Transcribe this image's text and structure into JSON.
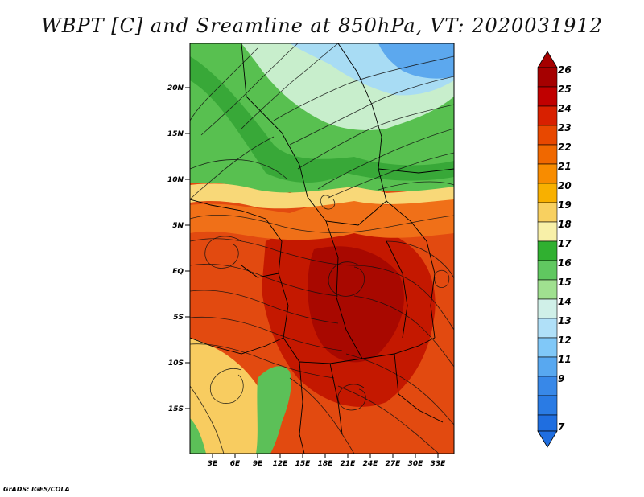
{
  "title": "WBPT [C] and Sreamline at 850hPa, VT: 2020031912",
  "credit": "GrADS: IGES/COLA",
  "map": {
    "y_labels": [
      "20N",
      "15N",
      "10N",
      "5N",
      "EQ",
      "5S",
      "10S",
      "15S"
    ],
    "x_labels": [
      "3E",
      "6E",
      "9E",
      "12E",
      "15E",
      "18E",
      "21E",
      "24E",
      "27E",
      "30E",
      "33E"
    ],
    "lat_range": [
      -20,
      24
    ],
    "lon_range": [
      0,
      35
    ]
  },
  "colorbar": {
    "labels": [
      "26",
      "25",
      "24",
      "23",
      "22",
      "21",
      "20",
      "19",
      "18",
      "17",
      "16",
      "15",
      "14",
      "13",
      "12",
      "11",
      "9",
      "7"
    ],
    "colors": [
      "#a50000",
      "#c00000",
      "#d82000",
      "#e84800",
      "#f06800",
      "#f88c00",
      "#f8b000",
      "#f8d060",
      "#f8f0a8",
      "#30b030",
      "#60c860",
      "#a0e090",
      "#d0f0e8",
      "#b0e0f8",
      "#80c8f8",
      "#58a8f0",
      "#3888e8",
      "#1f6ee0"
    ]
  }
}
